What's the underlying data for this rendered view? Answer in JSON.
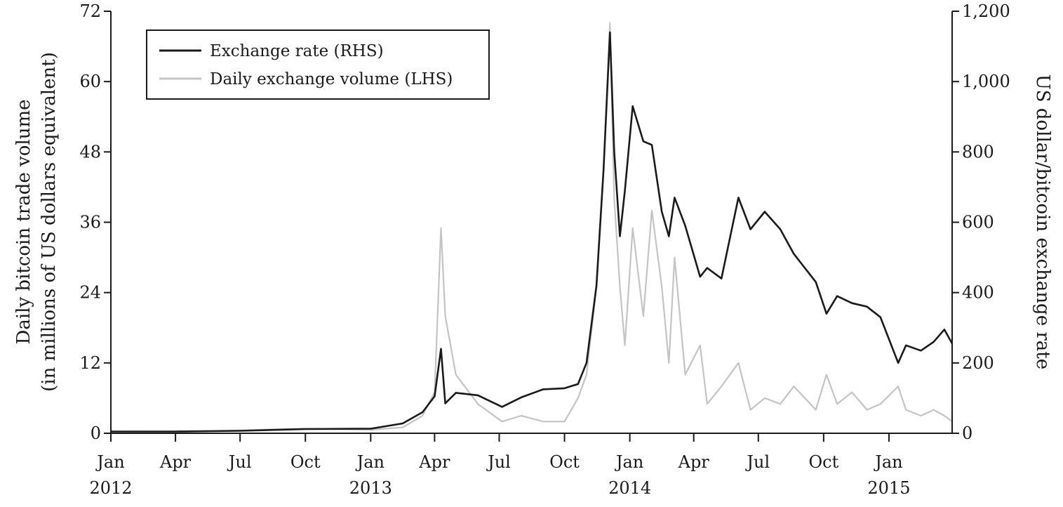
{
  "chart_data": {
    "type": "line",
    "title": "",
    "x": [
      "2012-01-01",
      "2012-04-01",
      "2012-07-01",
      "2012-10-01",
      "2013-01-01",
      "2013-02-15",
      "2013-03-15",
      "2013-04-01",
      "2013-04-10",
      "2013-04-16",
      "2013-05-01",
      "2013-06-01",
      "2013-07-05",
      "2013-08-01",
      "2013-09-01",
      "2013-10-01",
      "2013-10-20",
      "2013-11-01",
      "2013-11-15",
      "2013-11-25",
      "2013-12-04",
      "2013-12-10",
      "2013-12-18",
      "2013-12-25",
      "2014-01-05",
      "2014-01-20",
      "2014-02-01",
      "2014-02-15",
      "2014-02-25",
      "2014-03-05",
      "2014-03-20",
      "2014-04-10",
      "2014-04-20",
      "2014-05-10",
      "2014-06-03",
      "2014-06-20",
      "2014-07-10",
      "2014-08-01",
      "2014-08-20",
      "2014-09-20",
      "2014-10-05",
      "2014-10-20",
      "2014-11-10",
      "2014-12-01",
      "2014-12-20",
      "2015-01-14",
      "2015-01-25",
      "2015-02-15",
      "2015-03-05",
      "2015-03-20",
      "2015-03-31"
    ],
    "ylim_left": [
      0,
      72
    ],
    "ylim_right": [
      0,
      1200
    ],
    "xlim": [
      "2012-01-01",
      "2015-03-31"
    ],
    "x_ticks": [
      {
        "date": "2012-01-01",
        "label": "Jan",
        "year": "2012"
      },
      {
        "date": "2012-04-01",
        "label": "Apr",
        "year": ""
      },
      {
        "date": "2012-07-01",
        "label": "Jul",
        "year": ""
      },
      {
        "date": "2012-10-01",
        "label": "Oct",
        "year": ""
      },
      {
        "date": "2013-01-01",
        "label": "Jan",
        "year": "2013"
      },
      {
        "date": "2013-04-01",
        "label": "Apr",
        "year": ""
      },
      {
        "date": "2013-07-01",
        "label": "Jul",
        "year": ""
      },
      {
        "date": "2013-10-01",
        "label": "Oct",
        "year": ""
      },
      {
        "date": "2014-01-01",
        "label": "Jan",
        "year": "2014"
      },
      {
        "date": "2014-04-01",
        "label": "Apr",
        "year": ""
      },
      {
        "date": "2014-07-01",
        "label": "Jul",
        "year": ""
      },
      {
        "date": "2014-10-01",
        "label": "Oct",
        "year": ""
      },
      {
        "date": "2015-01-01",
        "label": "Jan",
        "year": "2015"
      }
    ],
    "y_left_ticks": [
      "0",
      "12",
      "24",
      "36",
      "48",
      "60",
      "72"
    ],
    "y_right_ticks": [
      "0",
      "200",
      "400",
      "600",
      "800",
      "1,000",
      "1,200"
    ],
    "ylabel_left_line1": "Daily bitcoin trade volume",
    "ylabel_left_line2": "(in millions of US dollars equivalent)",
    "ylabel_right": "US dollar/bitcoin exchange rate",
    "legend_position": "top-left",
    "grid": false,
    "series": [
      {
        "name": "Daily exchange volume (LHS)",
        "axis": "left",
        "color": "#c4c4c4",
        "values": [
          0.3,
          0.2,
          0.5,
          0.8,
          0.6,
          1.0,
          3.0,
          7.0,
          35.0,
          20.0,
          10.0,
          5.0,
          2.0,
          3.0,
          2.0,
          2.0,
          6.0,
          10.0,
          25.0,
          45.0,
          70.0,
          40.0,
          25.0,
          15.0,
          35.0,
          20.0,
          38.0,
          25.0,
          12.0,
          30.0,
          10.0,
          15.0,
          5.0,
          8.0,
          12.0,
          4.0,
          6.0,
          5.0,
          8.0,
          4.0,
          10.0,
          5.0,
          7.0,
          4.0,
          5.0,
          8.0,
          4.0,
          3.0,
          4.0,
          3.0,
          2.0
        ]
      },
      {
        "name": "Exchange rate (RHS)",
        "axis": "right",
        "color": "#1a1a1a",
        "values": [
          5,
          5,
          7,
          12,
          13,
          28,
          60,
          105,
          240,
          85,
          115,
          108,
          75,
          102,
          125,
          128,
          140,
          200,
          420,
          750,
          1140,
          800,
          560,
          690,
          930,
          830,
          820,
          630,
          560,
          670,
          590,
          445,
          470,
          440,
          670,
          580,
          630,
          580,
          510,
          430,
          340,
          390,
          370,
          360,
          330,
          200,
          250,
          235,
          260,
          295,
          255
        ]
      }
    ]
  }
}
